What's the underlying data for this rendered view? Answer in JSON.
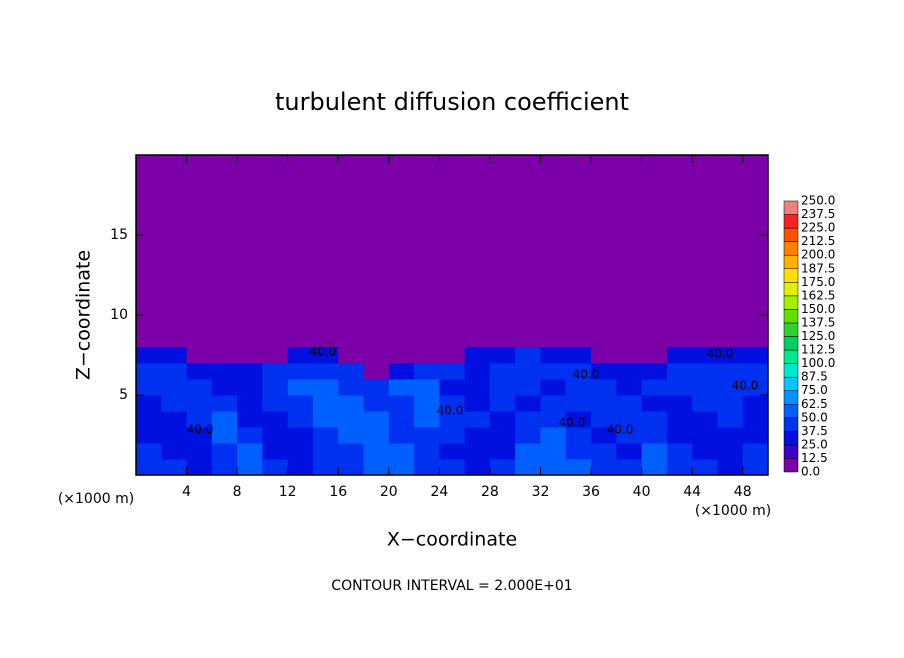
{
  "chart_data": {
    "type": "heatmap",
    "title": "turbulent diffusion coefficient",
    "x_label": "X−coordinate",
    "y_label": "Z−coordinate",
    "x_unit": "(×1000 m)",
    "footer": "CONTOUR INTERVAL = 2.000E+01",
    "xlim": [
      0,
      50
    ],
    "ylim": [
      0,
      20
    ],
    "xticks": [
      4,
      8,
      12,
      16,
      20,
      24,
      28,
      32,
      36,
      40,
      44,
      48
    ],
    "yticks": [
      5,
      10,
      15
    ],
    "contour_labels": [
      "40.0",
      "40.0",
      "40.0",
      "40.0",
      "40.0",
      "40.0",
      "40.0",
      "40.0"
    ],
    "x": [
      1,
      3,
      5,
      7,
      9,
      11,
      13,
      15,
      17,
      19,
      21,
      23,
      25,
      27,
      29,
      31,
      33,
      35,
      37,
      39,
      41,
      43,
      45,
      47,
      49
    ],
    "z": [
      0.5,
      1.5,
      2.5,
      3.5,
      4.5,
      5.5,
      6.5,
      7.5
    ],
    "values": [
      [
        45,
        40,
        35,
        45,
        60,
        40,
        35,
        45,
        40,
        55,
        60,
        45,
        40,
        35,
        45,
        55,
        60,
        50,
        45,
        40,
        55,
        45,
        40,
        35,
        45
      ],
      [
        40,
        35,
        30,
        45,
        50,
        35,
        30,
        40,
        45,
        60,
        50,
        40,
        35,
        30,
        35,
        50,
        55,
        45,
        40,
        35,
        50,
        40,
        35,
        30,
        40
      ],
      [
        35,
        30,
        35,
        55,
        40,
        30,
        35,
        45,
        50,
        55,
        45,
        45,
        40,
        35,
        30,
        45,
        50,
        40,
        35,
        40,
        45,
        35,
        30,
        35,
        35
      ],
      [
        30,
        35,
        40,
        50,
        35,
        35,
        40,
        50,
        55,
        50,
        40,
        50,
        45,
        40,
        35,
        40,
        45,
        35,
        40,
        45,
        40,
        30,
        35,
        40,
        30
      ],
      [
        35,
        40,
        45,
        40,
        30,
        40,
        45,
        55,
        50,
        45,
        45,
        55,
        40,
        35,
        40,
        35,
        40,
        40,
        45,
        40,
        35,
        35,
        40,
        45,
        35
      ],
      [
        40,
        45,
        40,
        35,
        35,
        45,
        50,
        50,
        45,
        40,
        50,
        50,
        35,
        30,
        45,
        40,
        35,
        45,
        40,
        35,
        40,
        40,
        45,
        40,
        40
      ],
      [
        40,
        40,
        35,
        30,
        35,
        40,
        45,
        40,
        40,
        0,
        35,
        40,
        40,
        35,
        40,
        45,
        40,
        40,
        35,
        30,
        35,
        40,
        40,
        45,
        40
      ],
      [
        35,
        30,
        0,
        0,
        0,
        0,
        30,
        35,
        0,
        0,
        0,
        0,
        0,
        30,
        35,
        40,
        35,
        30,
        0,
        0,
        0,
        30,
        35,
        35,
        30
      ]
    ],
    "colorbar": {
      "levels": [
        {
          "value": 0,
          "label": "0.0"
        },
        {
          "value": 12.5,
          "label": "12.5"
        },
        {
          "value": 25,
          "label": "25.0"
        },
        {
          "value": 37.5,
          "label": "37.5"
        },
        {
          "value": 50,
          "label": "50.0"
        },
        {
          "value": 62.5,
          "label": "62.5"
        },
        {
          "value": 75,
          "label": "75.0"
        },
        {
          "value": 87.5,
          "label": "87.5"
        },
        {
          "value": 100,
          "label": "100.0"
        },
        {
          "value": 112.5,
          "label": "112.5"
        },
        {
          "value": 125,
          "label": "125.0"
        },
        {
          "value": 137.5,
          "label": "137.5"
        },
        {
          "value": 150,
          "label": "150.0"
        },
        {
          "value": 162.5,
          "label": "162.5"
        },
        {
          "value": 175,
          "label": "175.0"
        },
        {
          "value": 187.5,
          "label": "187.5"
        },
        {
          "value": 200,
          "label": "200.0"
        },
        {
          "value": 212.5,
          "label": "212.5"
        },
        {
          "value": 225,
          "label": "225.0"
        },
        {
          "value": 237.5,
          "label": "237.5"
        },
        {
          "value": 250,
          "label": "250.0"
        }
      ],
      "colors": [
        "#7b00a8",
        "#3c00c8",
        "#0010e0",
        "#0030f0",
        "#0060ff",
        "#0090ff",
        "#00c8ff",
        "#00e8d0",
        "#00e890",
        "#00d060",
        "#30d030",
        "#60e000",
        "#a0f000",
        "#e0f000",
        "#ffe000",
        "#ffb000",
        "#ff8000",
        "#ff5000",
        "#ff2020",
        "#f08080"
      ]
    }
  }
}
